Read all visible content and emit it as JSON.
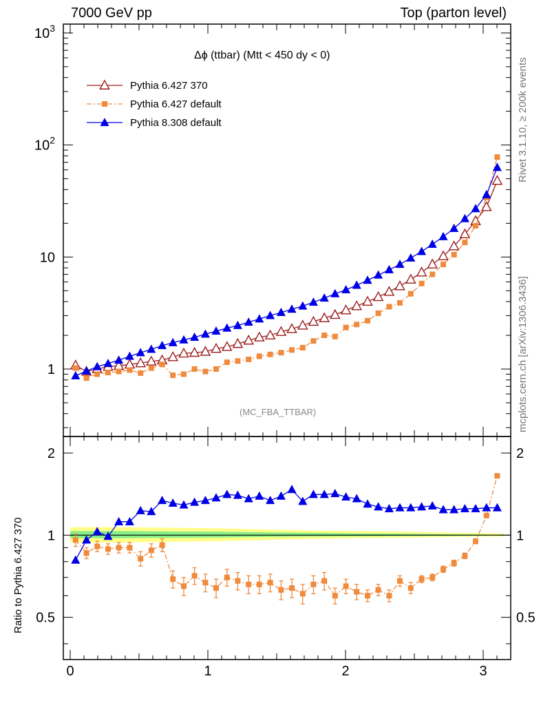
{
  "header": {
    "left": "7000 GeV pp",
    "right": "Top (parton level)"
  },
  "side_labels": {
    "rivet": "Rivet 3.1.10, ≥ 200k events",
    "mcplots": "mcplots.cern.ch [arXiv:1306.3436]"
  },
  "chart_data": [
    {
      "type": "line",
      "title": "Δϕ (ttbar) (Mtt < 450 dy < 0)",
      "annotation": "(MC_FBA_TTBAR)",
      "yscale": "log",
      "xlim": [
        -0.05,
        3.2
      ],
      "ylim": [
        0.25,
        1200
      ],
      "y_ticks": [
        "1",
        "10",
        "10^2",
        "10^3"
      ],
      "legend_position": "top-left",
      "series": [
        {
          "name": "Pythia 6.427 370",
          "color": "#9b1b1b",
          "marker": "open-triangle",
          "x": [
            0.039,
            0.118,
            0.196,
            0.275,
            0.353,
            0.432,
            0.511,
            0.589,
            0.668,
            0.746,
            0.825,
            0.903,
            0.982,
            1.06,
            1.139,
            1.217,
            1.296,
            1.374,
            1.453,
            1.532,
            1.61,
            1.689,
            1.767,
            1.846,
            1.924,
            2.003,
            2.081,
            2.16,
            2.238,
            2.317,
            2.395,
            2.474,
            2.553,
            2.631,
            2.71,
            2.788,
            2.867,
            2.945,
            3.024,
            3.102
          ],
          "values": [
            1.08,
            0.95,
            1.0,
            1.05,
            1.07,
            1.1,
            1.13,
            1.17,
            1.2,
            1.28,
            1.38,
            1.4,
            1.43,
            1.52,
            1.58,
            1.68,
            1.8,
            1.92,
            2.0,
            2.15,
            2.28,
            2.45,
            2.65,
            2.85,
            3.05,
            3.35,
            3.65,
            4.0,
            4.4,
            4.9,
            5.5,
            6.3,
            7.3,
            8.6,
            10.2,
            12.5,
            16.0,
            21.0,
            28.0,
            48.0
          ]
        },
        {
          "name": "Pythia 6.427 default",
          "color": "#f08a3c",
          "marker": "filled-square",
          "linestyle": "dash-dot",
          "x": [
            0.039,
            0.118,
            0.196,
            0.275,
            0.353,
            0.432,
            0.511,
            0.589,
            0.668,
            0.746,
            0.825,
            0.903,
            0.982,
            1.06,
            1.139,
            1.217,
            1.296,
            1.374,
            1.453,
            1.532,
            1.61,
            1.689,
            1.767,
            1.846,
            1.924,
            2.003,
            2.081,
            2.16,
            2.238,
            2.317,
            2.395,
            2.474,
            2.553,
            2.631,
            2.71,
            2.788,
            2.867,
            2.945,
            3.024,
            3.102
          ],
          "values": [
            1.02,
            0.83,
            0.9,
            0.93,
            0.95,
            0.98,
            0.92,
            1.02,
            1.1,
            0.88,
            0.9,
            1.0,
            0.95,
            1.0,
            1.15,
            1.18,
            1.22,
            1.3,
            1.35,
            1.4,
            1.48,
            1.55,
            1.78,
            2.0,
            1.95,
            2.35,
            2.5,
            2.7,
            3.15,
            3.6,
            3.9,
            4.7,
            5.8,
            7.0,
            8.6,
            10.5,
            13.5,
            19.0,
            34.0,
            78.0
          ]
        },
        {
          "name": "Pythia 8.308 default",
          "color": "#0000e6",
          "marker": "filled-triangle",
          "x": [
            0.039,
            0.118,
            0.196,
            0.275,
            0.353,
            0.432,
            0.511,
            0.589,
            0.668,
            0.746,
            0.825,
            0.903,
            0.982,
            1.06,
            1.139,
            1.217,
            1.296,
            1.374,
            1.453,
            1.532,
            1.61,
            1.689,
            1.767,
            1.846,
            1.924,
            2.003,
            2.081,
            2.16,
            2.238,
            2.317,
            2.395,
            2.474,
            2.553,
            2.631,
            2.71,
            2.788,
            2.867,
            2.945,
            3.024,
            3.102
          ],
          "values": [
            0.87,
            0.96,
            1.05,
            1.12,
            1.2,
            1.3,
            1.4,
            1.5,
            1.62,
            1.72,
            1.82,
            1.92,
            2.05,
            2.18,
            2.32,
            2.45,
            2.62,
            2.8,
            3.0,
            3.2,
            3.42,
            3.65,
            3.95,
            4.3,
            4.7,
            5.1,
            5.6,
            6.2,
            6.9,
            7.7,
            8.6,
            9.8,
            11.2,
            13.0,
            15.2,
            18.0,
            22.0,
            27.0,
            36.0,
            63.0
          ]
        }
      ]
    },
    {
      "type": "line",
      "ylabel": "Ratio to Pythia 6.427 370",
      "xlim": [
        -0.05,
        3.2
      ],
      "ylim": [
        0.35,
        2.3
      ],
      "x_ticks": [
        "0",
        "1",
        "2",
        "3"
      ],
      "y_ticks": [
        "0.5",
        "1",
        "2"
      ],
      "bands": [
        {
          "name": "yellow band",
          "color": "#ffff88",
          "lower": [
            0.94,
            0.94,
            0.945,
            0.95,
            0.96,
            0.97,
            0.975,
            0.98,
            0.985,
            0.99
          ],
          "upper": [
            1.07,
            1.07,
            1.065,
            1.06,
            1.05,
            1.04,
            1.035,
            1.03,
            1.02,
            1.015
          ]
        },
        {
          "name": "green band",
          "color": "#88ee88",
          "lower": [
            0.975,
            0.975,
            0.978,
            0.98,
            0.985,
            0.988,
            0.99,
            0.993,
            0.995,
            0.997
          ],
          "upper": [
            1.035,
            1.035,
            1.032,
            1.03,
            1.025,
            1.02,
            1.015,
            1.012,
            1.008,
            1.005
          ]
        }
      ],
      "band_x": [
        0.0,
        0.35,
        0.7,
        1.05,
        1.4,
        1.75,
        2.1,
        2.45,
        2.8,
        3.15
      ],
      "series": [
        {
          "name": "Pythia 6.427 default",
          "color": "#f08a3c",
          "marker": "filled-square",
          "linestyle": "dash-dot",
          "x": [
            0.039,
            0.118,
            0.196,
            0.275,
            0.353,
            0.432,
            0.511,
            0.589,
            0.668,
            0.746,
            0.825,
            0.903,
            0.982,
            1.06,
            1.139,
            1.217,
            1.296,
            1.374,
            1.453,
            1.532,
            1.61,
            1.689,
            1.767,
            1.846,
            1.924,
            2.003,
            2.081,
            2.16,
            2.238,
            2.317,
            2.395,
            2.474,
            2.553,
            2.631,
            2.71,
            2.788,
            2.867,
            2.945,
            3.024,
            3.102
          ],
          "values": [
            0.96,
            0.86,
            0.91,
            0.89,
            0.9,
            0.9,
            0.82,
            0.88,
            0.92,
            0.69,
            0.65,
            0.71,
            0.67,
            0.64,
            0.7,
            0.68,
            0.66,
            0.66,
            0.67,
            0.63,
            0.64,
            0.61,
            0.66,
            0.68,
            0.6,
            0.65,
            0.62,
            0.6,
            0.63,
            0.6,
            0.68,
            0.64,
            0.69,
            0.7,
            0.75,
            0.79,
            0.84,
            0.95,
            1.18,
            1.65
          ],
          "errors": [
            0.05,
            0.04,
            0.04,
            0.04,
            0.04,
            0.04,
            0.05,
            0.05,
            0.05,
            0.05,
            0.05,
            0.05,
            0.05,
            0.05,
            0.05,
            0.05,
            0.05,
            0.05,
            0.05,
            0.05,
            0.05,
            0.05,
            0.05,
            0.05,
            0.04,
            0.04,
            0.04,
            0.03,
            0.03,
            0.03,
            0.03,
            0.03,
            0.02,
            0.02,
            0.02,
            0.02,
            0.02,
            0.02,
            0.02,
            0.02
          ]
        },
        {
          "name": "Pythia 8.308 default",
          "color": "#0000e6",
          "marker": "filled-triangle",
          "x": [
            0.039,
            0.118,
            0.196,
            0.275,
            0.353,
            0.432,
            0.511,
            0.589,
            0.668,
            0.746,
            0.825,
            0.903,
            0.982,
            1.06,
            1.139,
            1.217,
            1.296,
            1.374,
            1.453,
            1.532,
            1.61,
            1.689,
            1.767,
            1.846,
            1.924,
            2.003,
            2.081,
            2.16,
            2.238,
            2.317,
            2.395,
            2.474,
            2.553,
            2.631,
            2.71,
            2.788,
            2.867,
            2.945,
            3.024,
            3.102
          ],
          "values": [
            0.81,
            0.96,
            1.03,
            0.99,
            1.12,
            1.12,
            1.23,
            1.22,
            1.34,
            1.31,
            1.29,
            1.32,
            1.34,
            1.37,
            1.41,
            1.4,
            1.36,
            1.39,
            1.34,
            1.39,
            1.47,
            1.33,
            1.41,
            1.41,
            1.42,
            1.38,
            1.36,
            1.3,
            1.27,
            1.25,
            1.26,
            1.26,
            1.27,
            1.28,
            1.24,
            1.24,
            1.25,
            1.25,
            1.26,
            1.26
          ]
        }
      ]
    }
  ]
}
